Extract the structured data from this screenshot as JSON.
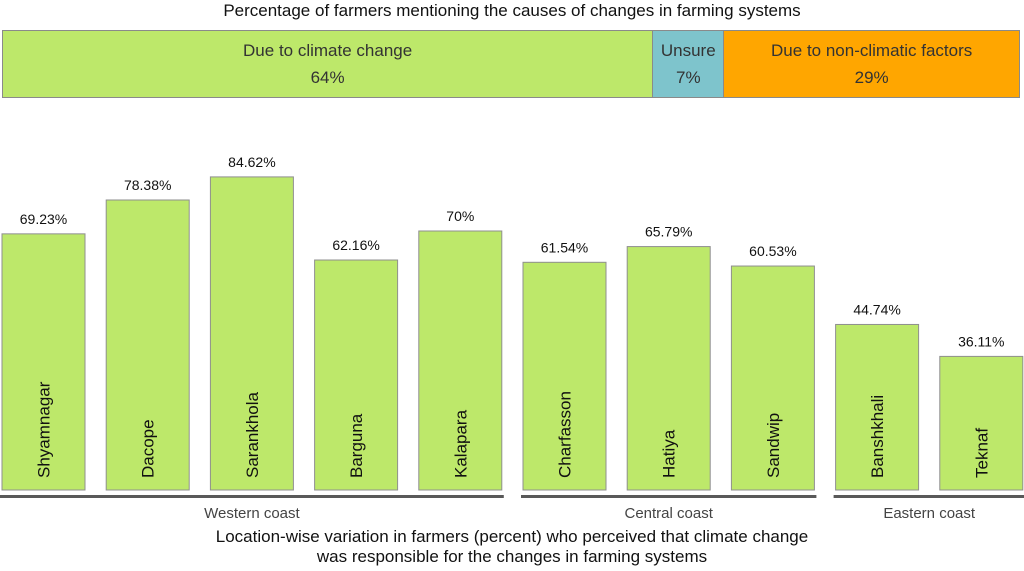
{
  "top": {
    "title": "Percentage of farmers mentioning the causes of changes in farming systems",
    "segments": [
      {
        "label": "Due to climate change",
        "value": 64,
        "display": "64%",
        "color": "#bde86a"
      },
      {
        "label": "Unsure",
        "value": 7,
        "display": "7%",
        "color": "#7ec4cc"
      },
      {
        "label": "Due to non-climatic factors",
        "value": 29,
        "display": "29%",
        "color": "#ffa600"
      }
    ]
  },
  "chart_data": {
    "type": "bar",
    "categories": [
      "Shyamnagar",
      "Dacope",
      "Sarankhola",
      "Barguna",
      "Kalapara",
      "Charfasson",
      "Hatiya",
      "Sandwip",
      "Banshkhali",
      "Teknaf"
    ],
    "values": [
      69.23,
      78.38,
      84.62,
      62.16,
      70,
      61.54,
      65.79,
      60.53,
      44.74,
      36.11
    ],
    "value_labels": [
      "69.23%",
      "78.38%",
      "84.62%",
      "62.16%",
      "70%",
      "61.54%",
      "65.79%",
      "60.53%",
      "44.74%",
      "36.11%"
    ],
    "groups": [
      {
        "name": "Western coast",
        "members": [
          "Shyamnagar",
          "Dacope",
          "Sarankhola",
          "Barguna",
          "Kalapara"
        ]
      },
      {
        "name": "Central coast",
        "members": [
          "Charfasson",
          "Hatiya",
          "Sandwip"
        ]
      },
      {
        "name": "Eastern coast",
        "members": [
          "Banshkhali",
          "Teknaf"
        ]
      }
    ],
    "bar_color": "#bde86a",
    "ylim": [
      0,
      100
    ],
    "grid": false
  },
  "caption": {
    "line1": "Location-wise variation in farmers (percent) who perceived that climate change",
    "line2": "was responsible for the changes in farming systems"
  }
}
